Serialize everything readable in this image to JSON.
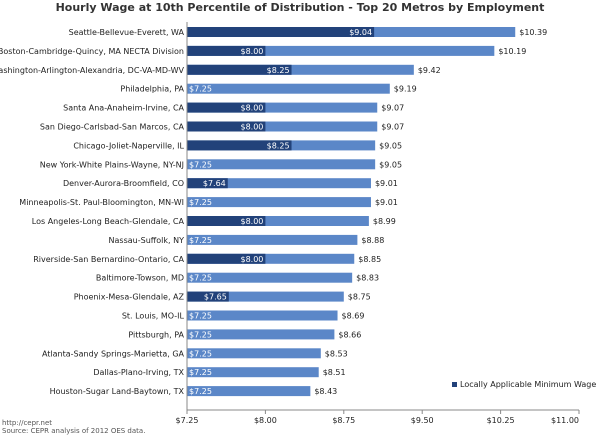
{
  "chart_data": {
    "type": "bar",
    "orientation": "horizontal",
    "title": "Hourly Wage at 10th Percentile of Distribution - Top 20 Metros by Employment",
    "categories": [
      "Seattle-Bellevue-Everett, WA",
      "Boston-Cambridge-Quincy, MA NECTA Division",
      "Washington-Arlington-Alexandria, DC-VA-MD-WV",
      "Philadelphia, PA",
      "Santa Ana-Anaheim-Irvine, CA",
      "San Diego-Carlsbad-San Marcos, CA",
      "Chicago-Joliet-Naperville, IL",
      "New York-White Plains-Wayne, NY-NJ",
      "Denver-Aurora-Broomfield, CO",
      "Minneapolis-St. Paul-Bloomington, MN-WI",
      "Los Angeles-Long Beach-Glendale, CA",
      "Nassau-Suffolk, NY",
      "Riverside-San Bernardino-Ontario, CA",
      "Baltimore-Towson, MD",
      "Phoenix-Mesa-Glendale, AZ",
      "St. Louis, MO-IL",
      "Pittsburgh, PA",
      "Atlanta-Sandy Springs-Marietta, GA",
      "Dallas-Plano-Irving, TX",
      "Houston-Sugar Land-Baytown, TX"
    ],
    "values": [
      10.39,
      10.19,
      9.42,
      9.19,
      9.07,
      9.07,
      9.05,
      9.05,
      9.01,
      9.01,
      8.99,
      8.88,
      8.85,
      8.83,
      8.75,
      8.69,
      8.66,
      8.53,
      8.51,
      8.43
    ],
    "value_labels": [
      "$10.39",
      "$10.19",
      "$9.42",
      "$9.19",
      "$9.07",
      "$9.07",
      "$9.05",
      "$9.05",
      "$9.01",
      "$9.01",
      "$8.99",
      "$8.88",
      "$8.85",
      "$8.83",
      "$8.75",
      "$8.69",
      "$8.66",
      "$8.53",
      "$8.51",
      "$8.43"
    ],
    "series": [
      {
        "name": "Locally Applicable Minimum Wage",
        "values": [
          9.04,
          8.0,
          8.25,
          7.25,
          8.0,
          8.0,
          8.25,
          7.25,
          7.64,
          7.25,
          8.0,
          7.25,
          8.0,
          7.25,
          7.65,
          7.25,
          7.25,
          7.25,
          7.25,
          7.25
        ],
        "labels": [
          "$9.04",
          "$8.00",
          "$8.25",
          "$7.25",
          "$8.00",
          "$8.00",
          "$8.25",
          "$7.25",
          "$7.64",
          "$7.25",
          "$8.00",
          "$7.25",
          "$8.00",
          "$7.25",
          "$7.65",
          "$7.25",
          "$7.25",
          "$7.25",
          "$7.25",
          "$7.25"
        ]
      }
    ],
    "xlim": [
      7.25,
      11.0
    ],
    "xticks": [
      7.25,
      8.0,
      8.75,
      9.5,
      10.25,
      11.0
    ],
    "xtick_labels": [
      "$7.25",
      "$8.00",
      "$8.75",
      "$9.50",
      "$10.25",
      "$11.00"
    ],
    "grid": false,
    "legend_position": "bottom-right",
    "colors": {
      "bar": "#5b87c8",
      "min_wage": "#22427a"
    }
  },
  "footer": {
    "url": "http://cepr.net",
    "source": "Source: CEPR analysis of 2012 OES data."
  }
}
